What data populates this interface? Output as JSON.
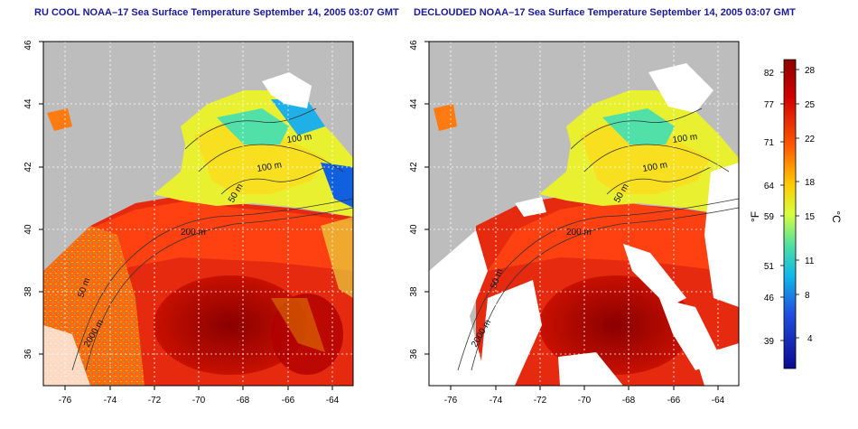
{
  "panels": [
    {
      "title": "RU COOL NOAA–17 Sea Surface Temperature September 14, 2005 03:07 GMT",
      "x_ticks": [
        "-76",
        "-74",
        "-72",
        "-70",
        "-68",
        "-66",
        "-64"
      ],
      "y_ticks": [
        "36",
        "38",
        "40",
        "42",
        "44",
        "46"
      ],
      "contours": [
        "100 m",
        "100 m",
        "50 m",
        "200 m",
        "50 m",
        "2000 m"
      ]
    },
    {
      "title": "DECLOUDED NOAA–17 Sea Surface Temperature September 14, 2005 03:07 GMT",
      "x_ticks": [
        "-76",
        "-74",
        "-72",
        "-70",
        "-68",
        "-66",
        "-64"
      ],
      "y_ticks": [
        "36",
        "38",
        "40",
        "42",
        "44",
        "46"
      ],
      "contours": [
        "100 m",
        "100 m",
        "50 m",
        "200 m",
        "50 m",
        "2000 m"
      ]
    }
  ],
  "colorbar": {
    "fahrenheit_label": "°F",
    "celsius_label": "°C",
    "fahrenheit_ticks": [
      "82",
      "77",
      "71",
      "64",
      "59",
      "51",
      "46",
      "39"
    ],
    "celsius_ticks": [
      "28",
      "25",
      "22",
      "18",
      "15",
      "11",
      "8",
      "4"
    ],
    "colors": [
      "#8b0000",
      "#e01010",
      "#ff6a00",
      "#ffd000",
      "#e6ff30",
      "#5ce6a0",
      "#10b8e8",
      "#2050e0",
      "#0a0a90"
    ]
  },
  "colors": {
    "land": "#bdbdbd",
    "title": "#1a1a9a",
    "clouds": "#ffffff"
  }
}
